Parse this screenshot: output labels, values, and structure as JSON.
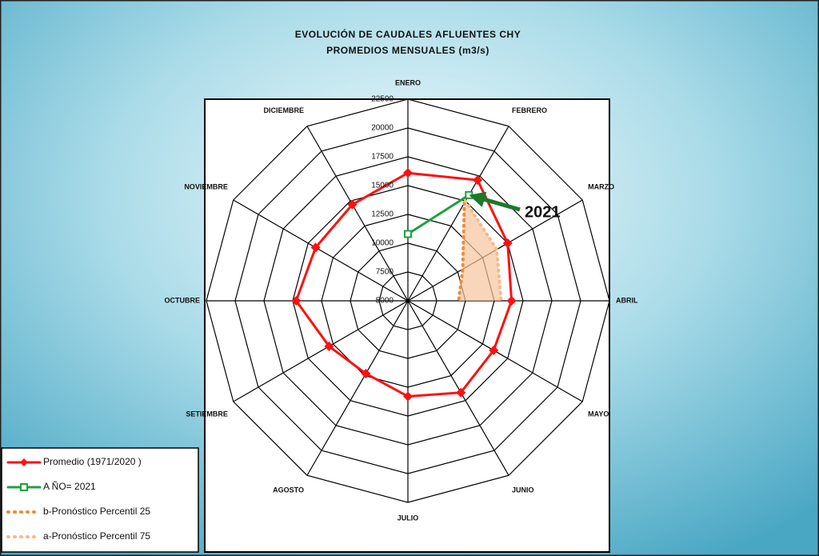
{
  "chart_data": {
    "type": "radar",
    "title": "EVOLUCIÓN DE CAUDALES AFLUENTES CHY",
    "subtitle": "PROMEDIOS MENSUALES (m3/s)",
    "categories": [
      "ENERO",
      "FEBRERO",
      "MARZO",
      "ABRIL",
      "MAYO",
      "JUNIO",
      "JULIO",
      "AGOSTO",
      "SETIEMBRE",
      "OCTUBRE",
      "NOVIEMBRE",
      "DICIEMBRE"
    ],
    "ylim": [
      5000,
      22500
    ],
    "yticks": [
      5000,
      7500,
      10000,
      12500,
      15000,
      17500,
      20000,
      22500
    ],
    "grid": true,
    "legend": "lower-left",
    "annotation": "2021",
    "series": [
      {
        "name": "Promedio (1971/2020 )",
        "color": "#ff1010",
        "marker": "diamond",
        "values": [
          16100,
          17100,
          15000,
          14000,
          13600,
          14200,
          13300,
          12300,
          12900,
          14700,
          14250,
          14650
        ]
      },
      {
        "name": "A ÑO= 2021",
        "color": "#1fa040",
        "marker": "square",
        "values": [
          10800,
          15600,
          null,
          null,
          null,
          null,
          null,
          null,
          null,
          null,
          null,
          null
        ]
      },
      {
        "name": "b-Pronóstico Percentil 25",
        "color": "#f08a3c",
        "dotted": true,
        "values": [
          null,
          14800,
          10500,
          9400,
          null,
          null,
          null,
          null,
          null,
          null,
          null,
          null
        ]
      },
      {
        "name": "a-Pronóstico Percentil 75",
        "color": "#f6b98a",
        "dotted": true,
        "values": [
          null,
          15000,
          13900,
          13100,
          null,
          null,
          null,
          null,
          null,
          null,
          null,
          null
        ]
      }
    ]
  }
}
